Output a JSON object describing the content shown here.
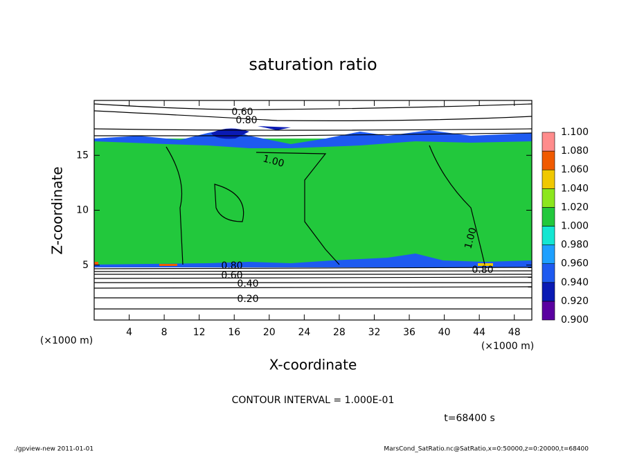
{
  "chart_data": {
    "type": "contour",
    "title": "saturation ratio",
    "x_label": "X-coordinate",
    "y_label": "Z-coordinate",
    "x_unit_label": "(×1000 m)",
    "y_unit_label": "(×1000 m)",
    "xlim": [
      0,
      50
    ],
    "xticks": [
      4,
      8,
      12,
      16,
      20,
      24,
      28,
      32,
      36,
      40,
      44,
      48
    ],
    "ylim": [
      0,
      20
    ],
    "yticks": [
      5,
      10,
      15
    ],
    "contour_labels": [
      "0.60",
      "0.80",
      "1.00",
      "0.80",
      "0.60",
      "0.40",
      "0.20",
      "1.00",
      "0.80"
    ],
    "contour_interval_label": "CONTOUR INTERVAL = 1.000E-01",
    "time_label": "t=68400 s",
    "colorbar": {
      "levels": [
        {
          "value": 0.9,
          "label": "0.900"
        },
        {
          "value": 0.92,
          "label": "0.920"
        },
        {
          "value": 0.94,
          "label": "0.940"
        },
        {
          "value": 0.96,
          "label": "0.960"
        },
        {
          "value": 0.98,
          "label": "0.980"
        },
        {
          "value": 1.0,
          "label": "1.000"
        },
        {
          "value": 1.02,
          "label": "1.020"
        },
        {
          "value": 1.04,
          "label": "1.040"
        },
        {
          "value": 1.06,
          "label": "1.060"
        },
        {
          "value": 1.08,
          "label": "1.080"
        },
        {
          "value": 1.1,
          "label": "1.100"
        }
      ],
      "colors": [
        "#5a00a0",
        "#0a1ab4",
        "#1e5af0",
        "#1ea0ff",
        "#14e6d2",
        "#22c83c",
        "#8ce61e",
        "#f0c800",
        "#f05a00",
        "#ff8c8c"
      ]
    },
    "footer_left": "./gpview-new  2011-01-01",
    "footer_right": "MarsCond_SatRatio.nc@SatRatio,x=0:50000,z=0:20000,t=68400"
  }
}
